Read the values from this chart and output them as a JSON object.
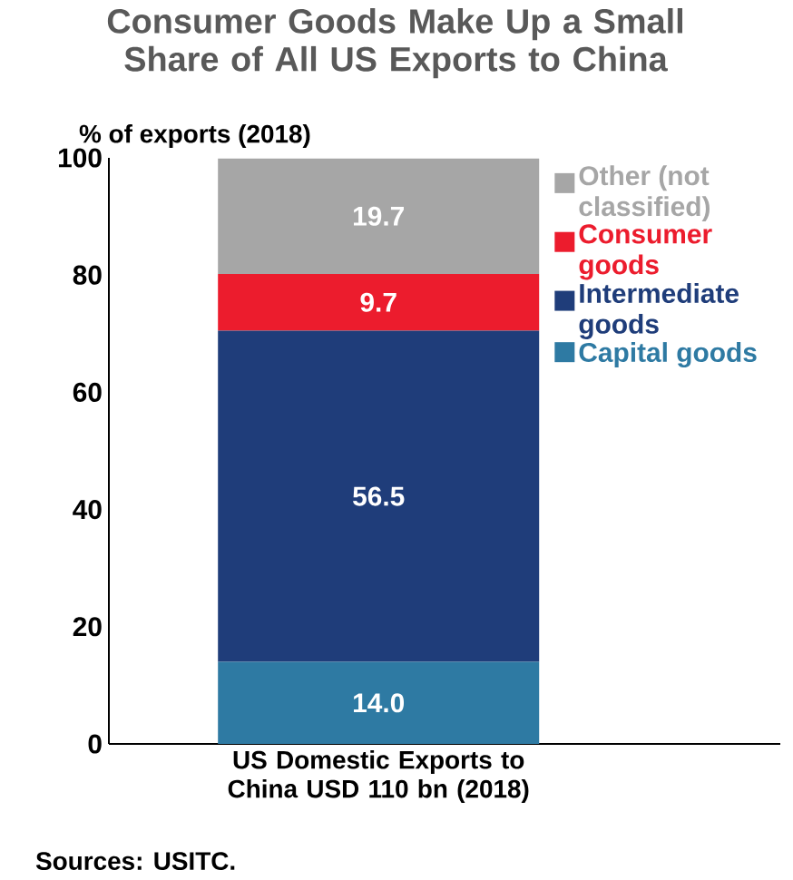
{
  "chart_data": {
    "type": "bar",
    "stacked": true,
    "title": "Consumer Goods Make Up a Small Share of All US Exports to China",
    "ylabel": "% of exports (2018)",
    "categories": [
      "US Domestic Exports to China USD 110 bn (2018)"
    ],
    "series": [
      {
        "name": "Capital goods",
        "color": "#2e7aa3",
        "values": [
          14.0
        ],
        "value_labels": [
          "14.0"
        ]
      },
      {
        "name": "Intermediate goods",
        "color": "#1f3d7a",
        "values": [
          56.5
        ],
        "value_labels": [
          "56.5"
        ]
      },
      {
        "name": "Consumer goods",
        "color": "#ec1c2d",
        "values": [
          9.7
        ],
        "value_labels": [
          "9.7"
        ]
      },
      {
        "name": "Other (not classified)",
        "color": "#a6a6a6",
        "values": [
          19.7
        ],
        "value_labels": [
          "19.7"
        ]
      }
    ],
    "ylim": [
      0,
      100
    ],
    "yticks": [
      0,
      20,
      40,
      60,
      80,
      100
    ],
    "legend": "right",
    "annotations": [
      "Sources: USITC."
    ]
  }
}
